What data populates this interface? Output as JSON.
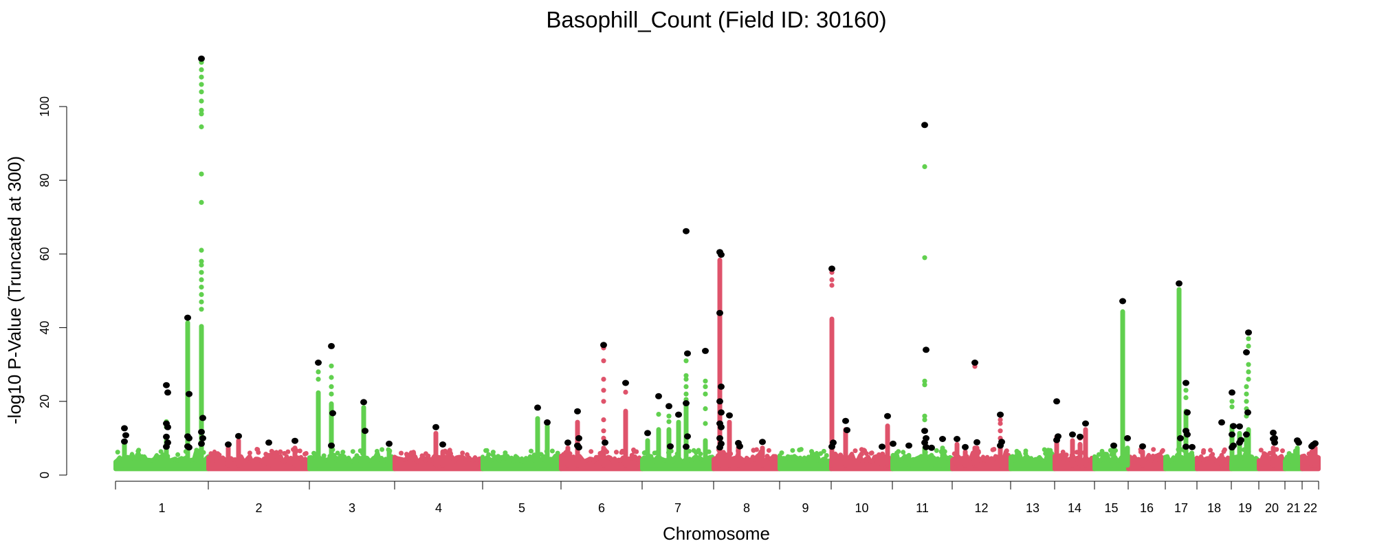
{
  "chart_data": {
    "type": "scatter",
    "subtype": "manhattan",
    "title": "Basophill_Count (Field ID: 30160)",
    "xlabel": "Chromosome",
    "ylabel": "-log10 P-Value (Truncated at 300)",
    "ylim": [
      0,
      113
    ],
    "yticks": [
      0,
      20,
      40,
      60,
      80,
      100
    ],
    "grid": false,
    "legend": "none",
    "colors": {
      "odd": "#61D04F",
      "even": "#DF536B",
      "hit": "#000000"
    },
    "chromosomes": [
      {
        "label": "1",
        "relative_span": 135
      },
      {
        "label": "2",
        "relative_span": 147
      },
      {
        "label": "3",
        "relative_span": 124
      },
      {
        "label": "4",
        "relative_span": 128
      },
      {
        "label": "5",
        "relative_span": 114
      },
      {
        "label": "6",
        "relative_span": 118
      },
      {
        "label": "7",
        "relative_span": 104
      },
      {
        "label": "8",
        "relative_span": 96
      },
      {
        "label": "9",
        "relative_span": 75
      },
      {
        "label": "10",
        "relative_span": 89
      },
      {
        "label": "11",
        "relative_span": 87
      },
      {
        "label": "12",
        "relative_span": 85
      },
      {
        "label": "13",
        "relative_span": 64
      },
      {
        "label": "14",
        "relative_span": 58
      },
      {
        "label": "15",
        "relative_span": 49
      },
      {
        "label": "16",
        "relative_span": 54
      },
      {
        "label": "17",
        "relative_span": 46
      },
      {
        "label": "18",
        "relative_span": 50
      },
      {
        "label": "19",
        "relative_span": 40
      },
      {
        "label": "20",
        "relative_span": 38
      },
      {
        "label": "21",
        "relative_span": 25
      },
      {
        "label": "22",
        "relative_span": 24
      }
    ],
    "peaks": [
      {
        "chr": 1,
        "pos": 13,
        "col": 9,
        "dots": [],
        "hits": [
          12.7,
          10.8,
          9.1
        ]
      },
      {
        "chr": 1,
        "pos": 74,
        "col": 10,
        "dots": [
          14.5,
          13
        ],
        "hits": [
          24.4,
          22.4,
          14,
          13,
          10.4,
          8.8,
          7.7
        ]
      },
      {
        "chr": 1,
        "pos": 105,
        "col": 42,
        "dots": [],
        "hits": [
          42.7,
          22,
          10.5,
          10,
          7.8,
          7.5
        ]
      },
      {
        "chr": 1,
        "pos": 125,
        "col": 41,
        "dots": [
          112,
          110,
          108,
          106,
          104,
          101.5,
          99,
          98,
          94.5,
          81.7,
          74,
          61,
          58,
          57,
          55,
          53,
          51,
          49,
          47,
          45
        ],
        "hits": [
          113,
          15.5,
          11.7,
          10,
          8.5
        ]
      },
      {
        "chr": 2,
        "pos": 29,
        "col": 8,
        "dots": [],
        "hits": [
          8.3
        ]
      },
      {
        "chr": 2,
        "pos": 44,
        "col": 10,
        "dots": [],
        "hits": [
          10.6
        ]
      },
      {
        "chr": 2,
        "pos": 88,
        "col": 6,
        "dots": [],
        "hits": [
          8.8
        ]
      },
      {
        "chr": 2,
        "pos": 126,
        "col": 8,
        "dots": [],
        "hits": [
          9.3
        ]
      },
      {
        "chr": 3,
        "pos": 13,
        "col": 23,
        "dots": [
          28,
          26
        ],
        "hits": [
          30.5
        ]
      },
      {
        "chr": 3,
        "pos": 32,
        "col": 20,
        "dots": [
          29.6,
          26.5,
          24,
          22
        ],
        "hits": [
          35,
          16.8,
          8
        ]
      },
      {
        "chr": 3,
        "pos": 79,
        "col": 19,
        "dots": [],
        "hits": [
          19.8,
          12
        ]
      },
      {
        "chr": 3,
        "pos": 116,
        "col": 7,
        "dots": [],
        "hits": [
          8.5
        ]
      },
      {
        "chr": 4,
        "pos": 60,
        "col": 12,
        "dots": [],
        "hits": [
          13
        ]
      },
      {
        "chr": 4,
        "pos": 70,
        "col": 7,
        "dots": [],
        "hits": [
          8.3
        ]
      },
      {
        "chr": 5,
        "pos": 80,
        "col": 16,
        "dots": [],
        "hits": [
          18.3
        ]
      },
      {
        "chr": 5,
        "pos": 94,
        "col": 14,
        "dots": [],
        "hits": [
          14.3
        ]
      },
      {
        "chr": 6,
        "pos": 10,
        "col": 8,
        "dots": [],
        "hits": [
          8.8
        ]
      },
      {
        "chr": 6,
        "pos": 24,
        "col": 15,
        "dots": [],
        "hits": [
          17.3,
          10,
          8,
          7.5
        ]
      },
      {
        "chr": 6,
        "pos": 62,
        "col": 8,
        "dots": [
          34.5,
          31,
          26,
          23,
          20,
          15,
          12,
          10
        ],
        "hits": [
          35.3,
          8.8
        ]
      },
      {
        "chr": 6,
        "pos": 94,
        "col": 18,
        "dots": [
          22.5
        ],
        "hits": [
          25
        ]
      },
      {
        "chr": 7,
        "pos": 8,
        "col": 10,
        "dots": [],
        "hits": [
          11.4
        ]
      },
      {
        "chr": 7,
        "pos": 24,
        "col": 13,
        "dots": [
          16.5
        ],
        "hits": [
          21.4
        ]
      },
      {
        "chr": 7,
        "pos": 39,
        "col": 13,
        "dots": [
          16,
          14.5
        ],
        "hits": [
          18.7,
          7.8
        ]
      },
      {
        "chr": 7,
        "pos": 53,
        "col": 15,
        "dots": [],
        "hits": [
          16.4
        ]
      },
      {
        "chr": 7,
        "pos": 64,
        "col": 20,
        "dots": [
          31,
          27,
          26,
          24,
          22,
          20.5
        ],
        "hits": [
          66.2,
          33,
          19.5,
          10.5,
          7.7
        ]
      },
      {
        "chr": 7,
        "pos": 92,
        "col": 10,
        "dots": [
          25.5,
          24,
          22,
          18,
          14
        ],
        "hits": [
          33.7
        ]
      },
      {
        "chr": 8,
        "pos": 9,
        "col": 59,
        "dots": [],
        "hits": [
          60.5,
          59.8,
          44,
          24,
          20,
          17,
          14,
          13,
          10,
          8.5,
          7.5
        ]
      },
      {
        "chr": 8,
        "pos": 23,
        "col": 15,
        "dots": [],
        "hits": [
          16.2
        ]
      },
      {
        "chr": 8,
        "pos": 36,
        "col": 8,
        "dots": [],
        "hits": [
          8.7,
          7.8
        ]
      },
      {
        "chr": 8,
        "pos": 71,
        "col": 8,
        "dots": [],
        "hits": [
          9
        ]
      },
      {
        "chr": 10,
        "pos": 1,
        "col": 43,
        "dots": [
          55,
          53,
          51.5
        ],
        "hits": [
          56,
          8.8,
          7.7
        ]
      },
      {
        "chr": 10,
        "pos": 21,
        "col": 13,
        "dots": [],
        "hits": [
          14.7,
          12.2
        ]
      },
      {
        "chr": 10,
        "pos": 74,
        "col": 6,
        "dots": [],
        "hits": [
          7.7
        ]
      },
      {
        "chr": 10,
        "pos": 82,
        "col": 14,
        "dots": [],
        "hits": [
          16
        ]
      },
      {
        "chr": 11,
        "pos": 1,
        "col": 6,
        "dots": [],
        "hits": [
          8.5
        ]
      },
      {
        "chr": 11,
        "pos": 24,
        "col": 6,
        "dots": [],
        "hits": [
          8
        ]
      },
      {
        "chr": 11,
        "pos": 47,
        "col": 8,
        "dots": [
          83.7,
          59,
          25.5,
          24.5,
          16,
          15
        ],
        "hits": [
          95,
          34,
          12,
          10,
          8.8,
          7.6
        ]
      },
      {
        "chr": 11,
        "pos": 57,
        "col": 6,
        "dots": [],
        "hits": [
          7.4
        ]
      },
      {
        "chr": 11,
        "pos": 73,
        "col": 8,
        "dots": [],
        "hits": [
          9.8
        ]
      },
      {
        "chr": 12,
        "pos": 7,
        "col": 9,
        "dots": [],
        "hits": [
          9.8
        ]
      },
      {
        "chr": 12,
        "pos": 19,
        "col": 7,
        "dots": [],
        "hits": [
          7.6
        ]
      },
      {
        "chr": 12,
        "pos": 33,
        "col": 8,
        "dots": [
          29.5
        ],
        "hits": [
          30.5
        ]
      },
      {
        "chr": 12,
        "pos": 36,
        "col": 8,
        "dots": [],
        "hits": [
          8.9
        ]
      },
      {
        "chr": 12,
        "pos": 70,
        "col": 9,
        "dots": [
          15,
          14,
          12,
          10
        ],
        "hits": [
          16.4,
          9,
          8
        ]
      },
      {
        "chr": 14,
        "pos": 3,
        "col": 11,
        "dots": [],
        "hits": [
          20,
          10.5,
          9.5
        ]
      },
      {
        "chr": 14,
        "pos": 26,
        "col": 10,
        "dots": [],
        "hits": [
          11
        ]
      },
      {
        "chr": 14,
        "pos": 37,
        "col": 9,
        "dots": [
          10,
          8
        ],
        "hits": [
          10.4
        ]
      },
      {
        "chr": 14,
        "pos": 45,
        "col": 13,
        "dots": [],
        "hits": [
          14
        ]
      },
      {
        "chr": 15,
        "pos": 28,
        "col": 8,
        "dots": [],
        "hits": [
          8
        ]
      },
      {
        "chr": 15,
        "pos": 41,
        "col": 45,
        "dots": [],
        "hits": [
          47.2
        ]
      },
      {
        "chr": 15,
        "pos": 48,
        "col": 8,
        "dots": [],
        "hits": [
          10
        ]
      },
      {
        "chr": 16,
        "pos": 21,
        "col": 7,
        "dots": [],
        "hits": [
          7.8
        ]
      },
      {
        "chr": 17,
        "pos": 20,
        "col": 51,
        "dots": [],
        "hits": [
          52,
          10
        ]
      },
      {
        "chr": 17,
        "pos": 30,
        "col": 18,
        "dots": [
          23,
          21
        ],
        "hits": [
          25,
          17,
          12,
          11,
          7.7
        ]
      },
      {
        "chr": 17,
        "pos": 39,
        "col": 6,
        "dots": [],
        "hits": [
          7.6
        ]
      },
      {
        "chr": 18,
        "pos": 36,
        "col": 6,
        "dots": [],
        "hits": [
          14.3
        ]
      },
      {
        "chr": 19,
        "pos": 1,
        "col": 14,
        "dots": [
          20,
          18.5
        ],
        "hits": [
          22.4,
          13.3,
          11,
          8,
          7.5
        ]
      },
      {
        "chr": 19,
        "pos": 12,
        "col": 12,
        "dots": [],
        "hits": [
          13.2,
          9.5,
          8.8
        ]
      },
      {
        "chr": 19,
        "pos": 22,
        "col": 12,
        "dots": [
          24,
          22,
          20,
          18,
          16
        ],
        "hits": [
          33.3,
          17,
          11
        ]
      },
      {
        "chr": 19,
        "pos": 25,
        "col": 13,
        "dots": [
          37,
          35,
          30,
          28,
          26
        ],
        "hits": [
          38.7
        ]
      },
      {
        "chr": 20,
        "pos": 21,
        "col": 8,
        "dots": [],
        "hits": [
          11.5,
          10,
          9.8,
          8.8
        ]
      },
      {
        "chr": 21,
        "pos": 18,
        "col": 8,
        "dots": [],
        "hits": [
          9.4,
          8.8
        ]
      },
      {
        "chr": 22,
        "pos": 14,
        "col": 7,
        "dots": [],
        "hits": [
          7.8,
          8.2
        ]
      },
      {
        "chr": 22,
        "pos": 19,
        "col": 8,
        "dots": [],
        "hits": [
          8.6
        ]
      }
    ]
  }
}
